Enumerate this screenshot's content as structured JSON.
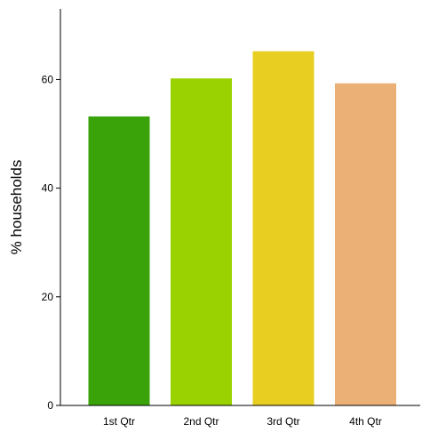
{
  "chart_data": {
    "type": "bar",
    "categories": [
      "1st Qtr",
      "2nd Qtr",
      "3rd Qtr",
      "4th Qtr"
    ],
    "values": [
      53.2,
      60.2,
      65.2,
      59.3
    ],
    "colors": [
      "#3aa30a",
      "#9ad101",
      "#e7ce20",
      "#ebb076"
    ],
    "title": "",
    "xlabel": "",
    "ylabel": "% households",
    "ylim": [
      0,
      73
    ],
    "yticks": [
      0,
      20,
      40,
      60
    ],
    "grid": false,
    "legend": "none"
  }
}
